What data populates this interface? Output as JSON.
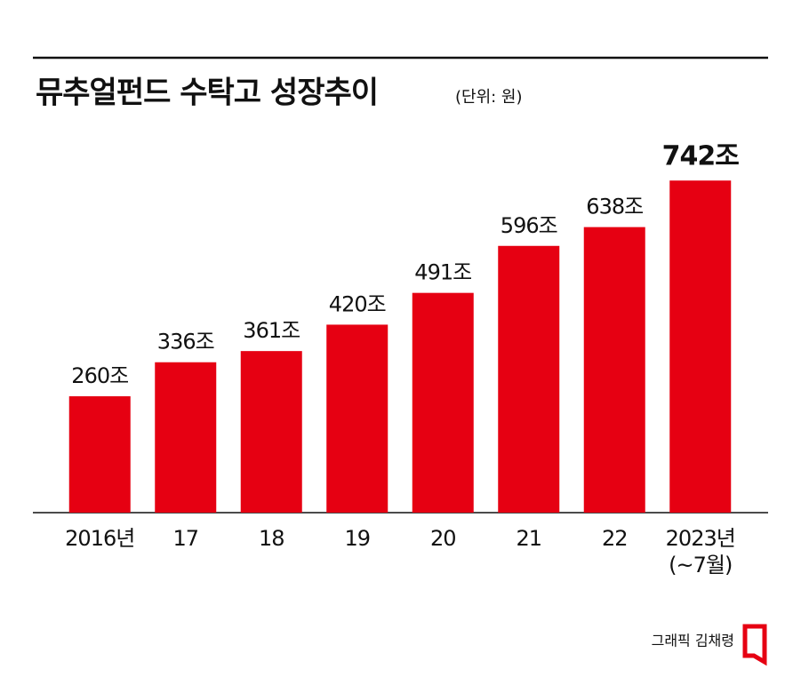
{
  "chart_data": {
    "type": "bar",
    "title": "뮤추얼펀드 수탁고 성장추이",
    "subtitle": "(단위: 원)",
    "categories": [
      "2016년",
      "17",
      "18",
      "19",
      "20",
      "21",
      "22",
      "2023년\n(~7월)"
    ],
    "values": [
      260,
      336,
      361,
      420,
      491,
      596,
      638,
      742
    ],
    "value_labels": [
      "260조",
      "336조",
      "361조",
      "420조",
      "491조",
      "596조",
      "638조",
      "742조"
    ],
    "color": "#e60012",
    "ylim": [
      0,
      800
    ],
    "credit": "그래픽 김채령"
  }
}
